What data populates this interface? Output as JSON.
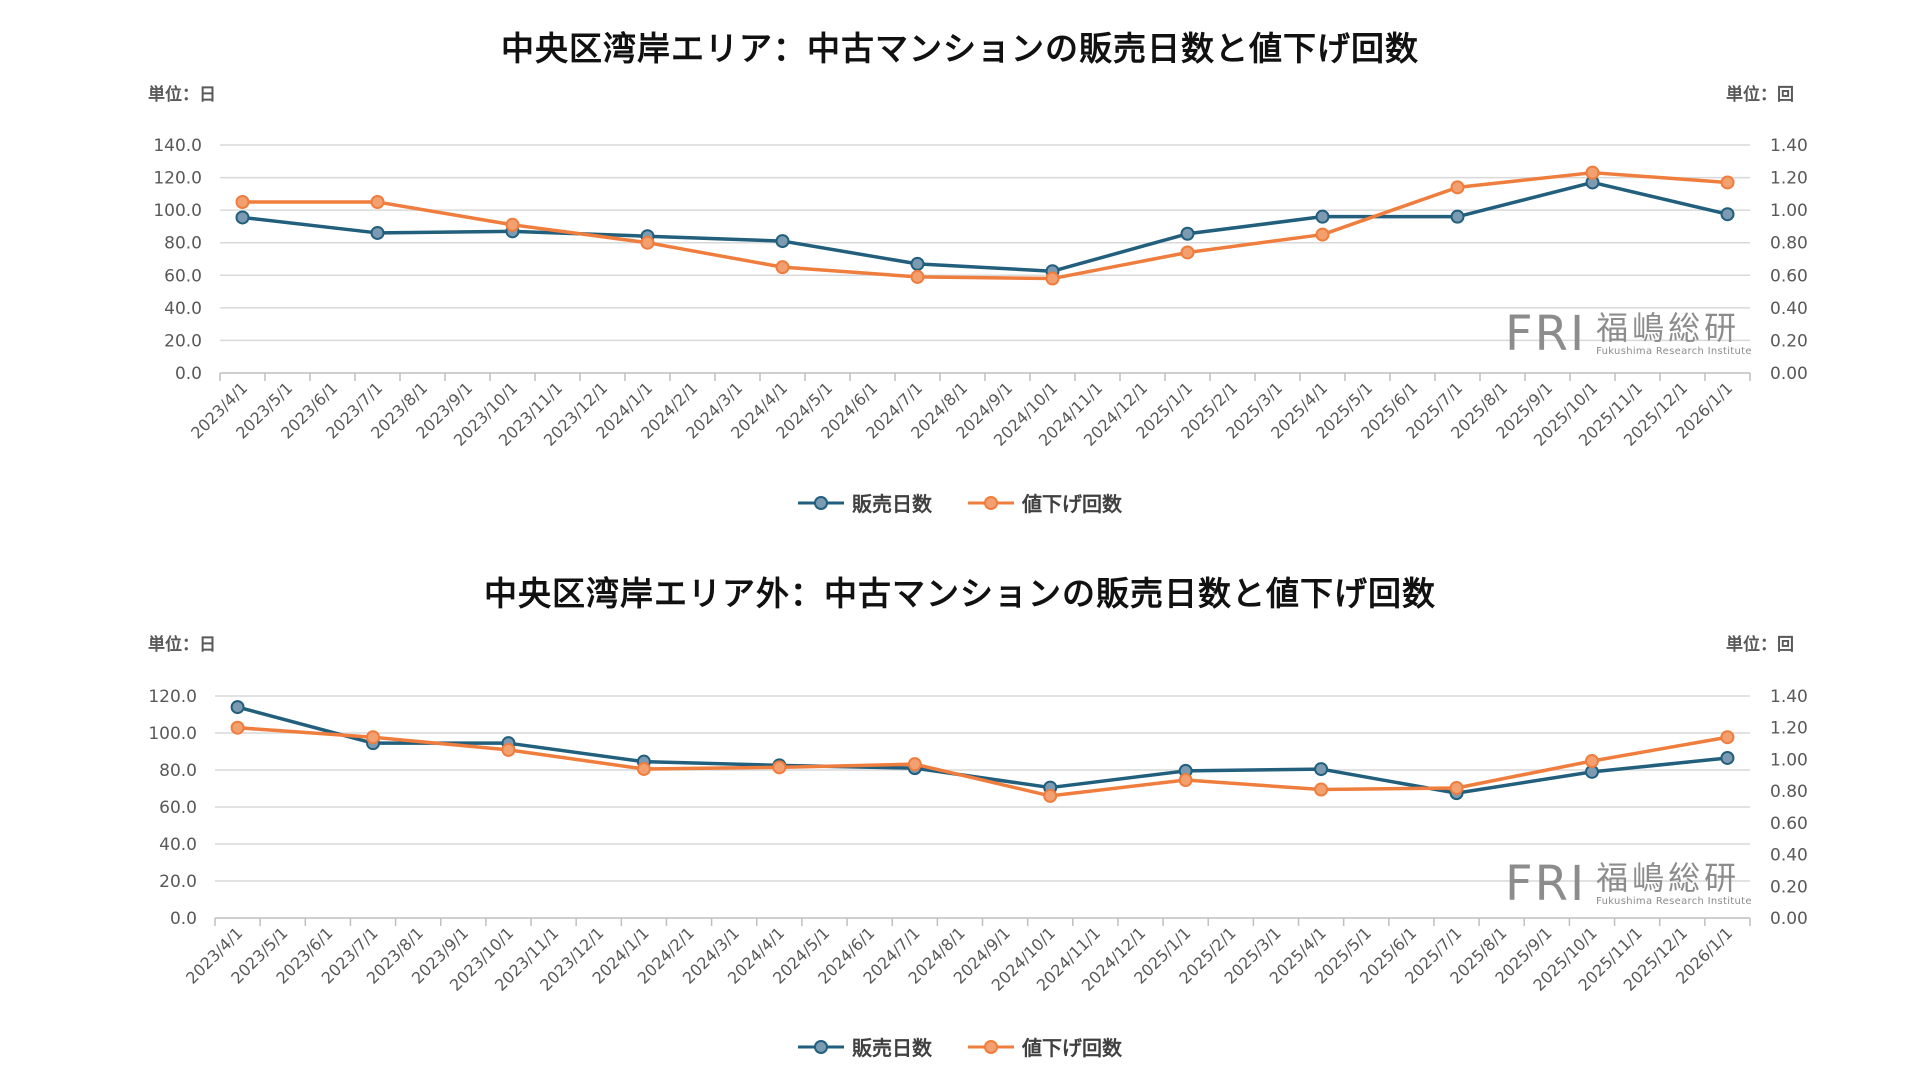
{
  "colors": {
    "days": "#215f7c",
    "days_marker": "#7c9bb3",
    "cuts": "#ef7d3d",
    "cuts_marker": "#f3a070",
    "grid": "#d9d9d9",
    "axis_text": "#595959"
  },
  "legend": {
    "days": "販売日数",
    "cuts": "値下げ回数"
  },
  "logo": {
    "mark": "FRI",
    "jp": "福嶋総研",
    "en": "Fukushima Research Institute"
  },
  "months": [
    "2023/4/1",
    "2023/5/1",
    "2023/6/1",
    "2023/7/1",
    "2023/8/1",
    "2023/9/1",
    "2023/10/1",
    "2023/11/1",
    "2023/12/1",
    "2024/1/1",
    "2024/2/1",
    "2024/3/1",
    "2024/4/1",
    "2024/5/1",
    "2024/6/1",
    "2024/7/1",
    "2024/8/1",
    "2024/9/1",
    "2024/10/1",
    "2024/11/1",
    "2024/12/1",
    "2025/1/1",
    "2025/2/1",
    "2025/3/1",
    "2025/4/1",
    "2025/5/1",
    "2025/6/1",
    "2025/7/1",
    "2025/8/1",
    "2025/9/1",
    "2025/10/1",
    "2025/11/1",
    "2025/12/1",
    "2026/1/1"
  ],
  "chart_data": [
    {
      "type": "line",
      "title": "中央区湾岸エリア：中古マンションの販売日数と値下げ回数",
      "ylabel_left": "単位：日",
      "ylabel_right": "単位：回",
      "ylim_left": [
        0,
        140
      ],
      "ylim_right": [
        0,
        1.4
      ],
      "yticks_left": [
        "0.0",
        "20.0",
        "40.0",
        "60.0",
        "80.0",
        "100.0",
        "120.0",
        "140.0"
      ],
      "yticks_right": [
        "0.00",
        "0.20",
        "0.40",
        "0.60",
        "0.80",
        "1.00",
        "1.20",
        "1.40"
      ],
      "x": [
        "2023/4/1",
        "2023/7/1",
        "2023/10/1",
        "2024/1/1",
        "2024/4/1",
        "2024/7/1",
        "2024/10/1",
        "2025/1/1",
        "2025/4/1",
        "2025/7/1",
        "2025/10/1",
        "2026/1/1"
      ],
      "series": [
        {
          "name": "販売日数",
          "axis": "left",
          "values": [
            95.5,
            86,
            87,
            84,
            81,
            67,
            62.5,
            85.5,
            96,
            96,
            117,
            97.5
          ]
        },
        {
          "name": "値下げ回数",
          "axis": "right",
          "values": [
            1.05,
            1.05,
            0.91,
            0.8,
            0.65,
            0.59,
            0.58,
            0.74,
            0.85,
            1.14,
            1.23,
            1.17
          ]
        }
      ]
    },
    {
      "type": "line",
      "title": "中央区湾岸エリア外：中古マンションの販売日数と値下げ回数",
      "ylabel_left": "単位：日",
      "ylabel_right": "単位：回",
      "ylim_left": [
        0,
        120
      ],
      "ylim_right": [
        0,
        1.4
      ],
      "yticks_left": [
        "0.0",
        "20.0",
        "40.0",
        "60.0",
        "80.0",
        "100.0",
        "120.0"
      ],
      "yticks_right": [
        "0.00",
        "0.20",
        "0.40",
        "0.60",
        "0.80",
        "1.00",
        "1.20",
        "1.40"
      ],
      "x": [
        "2023/4/1",
        "2023/7/1",
        "2023/10/1",
        "2024/1/1",
        "2024/4/1",
        "2024/7/1",
        "2024/10/1",
        "2025/1/1",
        "2025/4/1",
        "2025/7/1",
        "2025/10/1",
        "2026/1/1"
      ],
      "series": [
        {
          "name": "販売日数",
          "axis": "left",
          "values": [
            114,
            94.5,
            94.5,
            84.5,
            82.5,
            81,
            70.5,
            79.5,
            80.5,
            67.5,
            79,
            86.5
          ]
        },
        {
          "name": "値下げ回数",
          "axis": "right",
          "values": [
            1.2,
            1.14,
            1.06,
            0.94,
            0.95,
            0.97,
            0.77,
            0.87,
            0.81,
            0.82,
            0.99,
            1.14
          ]
        }
      ]
    }
  ]
}
